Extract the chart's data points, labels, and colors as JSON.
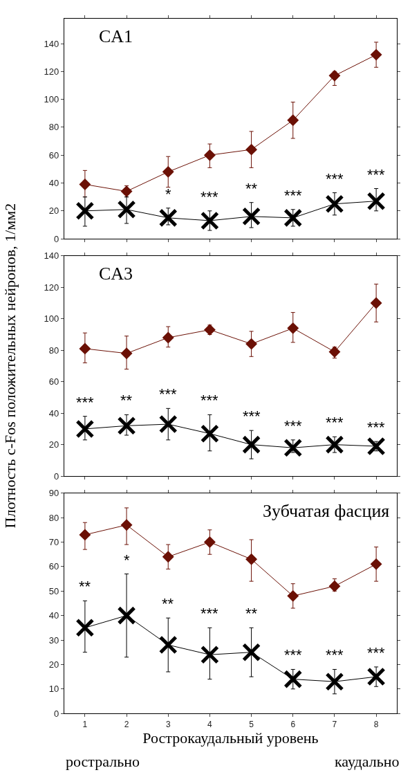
{
  "chart_data": [
    {
      "type": "line",
      "title": "CA1",
      "x": [
        1,
        2,
        3,
        4,
        5,
        6,
        7,
        8
      ],
      "xlim": [
        0.5,
        8.5
      ],
      "xticks": [
        1,
        2,
        3,
        4,
        5,
        6,
        7,
        8
      ],
      "ylim": [
        0,
        158
      ],
      "yticks": [
        0,
        20,
        40,
        60,
        80,
        100,
        120,
        140
      ],
      "tick_labels": "y",
      "series": [
        {
          "color": "#6b1005",
          "marker": "diamond",
          "values": [
            39,
            34,
            48,
            60,
            64,
            85,
            117,
            132
          ],
          "errors": [
            [
              30,
              49
            ],
            [
              30,
              38
            ],
            [
              37,
              59
            ],
            [
              51,
              68
            ],
            [
              51,
              77
            ],
            [
              72,
              98
            ],
            [
              110,
              120
            ],
            [
              123,
              141
            ]
          ]
        },
        {
          "color": "#000000",
          "marker": "cross",
          "values": [
            20,
            21,
            15,
            13,
            16,
            15,
            25,
            27
          ],
          "errors": [
            [
              9,
              30
            ],
            [
              11,
              30
            ],
            [
              10,
              22
            ],
            [
              6,
              20
            ],
            [
              8,
              26
            ],
            [
              9,
              21
            ],
            [
              17,
              33
            ],
            [
              20,
              36
            ]
          ]
        }
      ],
      "annotations": [
        "*",
        "***",
        "**",
        "***",
        "***",
        "***"
      ]
    },
    {
      "type": "line",
      "title": "CA3",
      "ylabel": "Плотность c-Fos положительных нейронов, 1/мм2",
      "x": [
        1,
        2,
        3,
        4,
        5,
        6,
        7,
        8
      ],
      "xlim": [
        0.5,
        8.5
      ],
      "xticks": [
        1,
        2,
        3,
        4,
        5,
        6,
        7,
        8
      ],
      "ylim": [
        0,
        140
      ],
      "yticks": [
        0,
        20,
        40,
        60,
        80,
        100,
        120,
        140
      ],
      "tick_labels": "y",
      "series": [
        {
          "color": "#6b1005",
          "marker": "diamond",
          "values": [
            81,
            78,
            88,
            93,
            84,
            94,
            79,
            110
          ],
          "errors": [
            [
              72,
              91
            ],
            [
              68,
              89
            ],
            [
              82,
              95
            ],
            [
              90,
              96
            ],
            [
              76,
              92
            ],
            [
              85,
              104
            ],
            [
              75,
              82
            ],
            [
              98,
              122
            ]
          ]
        },
        {
          "color": "#000000",
          "marker": "cross",
          "values": [
            30,
            32,
            33,
            27,
            20,
            18,
            20,
            19
          ],
          "errors": [
            [
              23,
              38
            ],
            [
              26,
              39
            ],
            [
              23,
              43
            ],
            [
              16,
              39
            ],
            [
              11,
              29
            ],
            [
              15,
              23
            ],
            [
              15,
              25
            ],
            [
              16,
              22
            ]
          ]
        }
      ],
      "annotations": [
        "***",
        "**",
        "***",
        "***",
        "***",
        "***",
        "***",
        "***"
      ]
    },
    {
      "type": "line",
      "title": "Зубчатая фасция",
      "xlabel": "Рострокаудальный уровень",
      "x": [
        1,
        2,
        3,
        4,
        5,
        6,
        7,
        8
      ],
      "xlim": [
        0.5,
        8.5
      ],
      "xticks": [
        1,
        2,
        3,
        4,
        5,
        6,
        7,
        8
      ],
      "ylim": [
        0,
        90
      ],
      "yticks": [
        0,
        10,
        20,
        30,
        40,
        50,
        60,
        70,
        80,
        90
      ],
      "series": [
        {
          "color": "#6b1005",
          "marker": "diamond",
          "values": [
            73,
            77,
            64,
            70,
            63,
            48,
            52,
            61
          ],
          "errors": [
            [
              67,
              78
            ],
            [
              69,
              84
            ],
            [
              59,
              69
            ],
            [
              65,
              75
            ],
            [
              54,
              71
            ],
            [
              43,
              53
            ],
            [
              50,
              55
            ],
            [
              54,
              68
            ]
          ]
        },
        {
          "color": "#000000",
          "marker": "cross",
          "values": [
            35,
            40,
            28,
            24,
            25,
            14,
            13,
            15
          ],
          "errors": [
            [
              25,
              46
            ],
            [
              23,
              57
            ],
            [
              17,
              39
            ],
            [
              14,
              35
            ],
            [
              15,
              35
            ],
            [
              10,
              18
            ],
            [
              8,
              18
            ],
            [
              11,
              19
            ]
          ]
        }
      ],
      "annotations": [
        "**",
        "*",
        "**",
        "***",
        "**",
        "***",
        "***",
        "***",
        "рострально",
        "каудально"
      ]
    }
  ]
}
